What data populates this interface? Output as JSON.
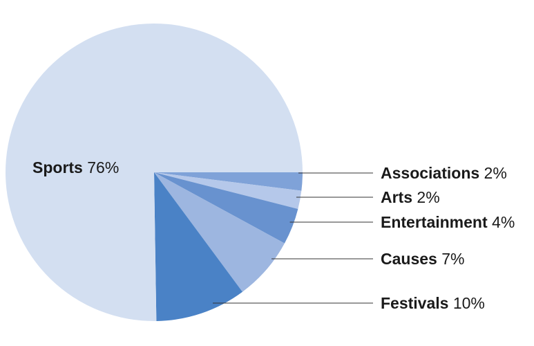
{
  "chart_data": {
    "type": "pie",
    "title": "",
    "slices": [
      {
        "label": "Sports",
        "value": 76,
        "value_text": "76%",
        "color": "#d3dff1"
      },
      {
        "label": "Festivals",
        "value": 10,
        "value_text": "10%",
        "color": "#4a82c6"
      },
      {
        "label": "Causes",
        "value": 7,
        "value_text": "7%",
        "color": "#9db6e0"
      },
      {
        "label": "Entertainment",
        "value": 4,
        "value_text": "4%",
        "color": "#6892cf"
      },
      {
        "label": "Arts",
        "value": 2,
        "value_text": "2%",
        "color": "#b5c8ea"
      },
      {
        "label": "Associations",
        "value": 2,
        "value_text": "2%",
        "color": "#7fa2d8"
      }
    ],
    "start_angle_deg": 0,
    "direction": "clockwise",
    "label_style": "inline for largest slice, leader lines to the right for others"
  }
}
